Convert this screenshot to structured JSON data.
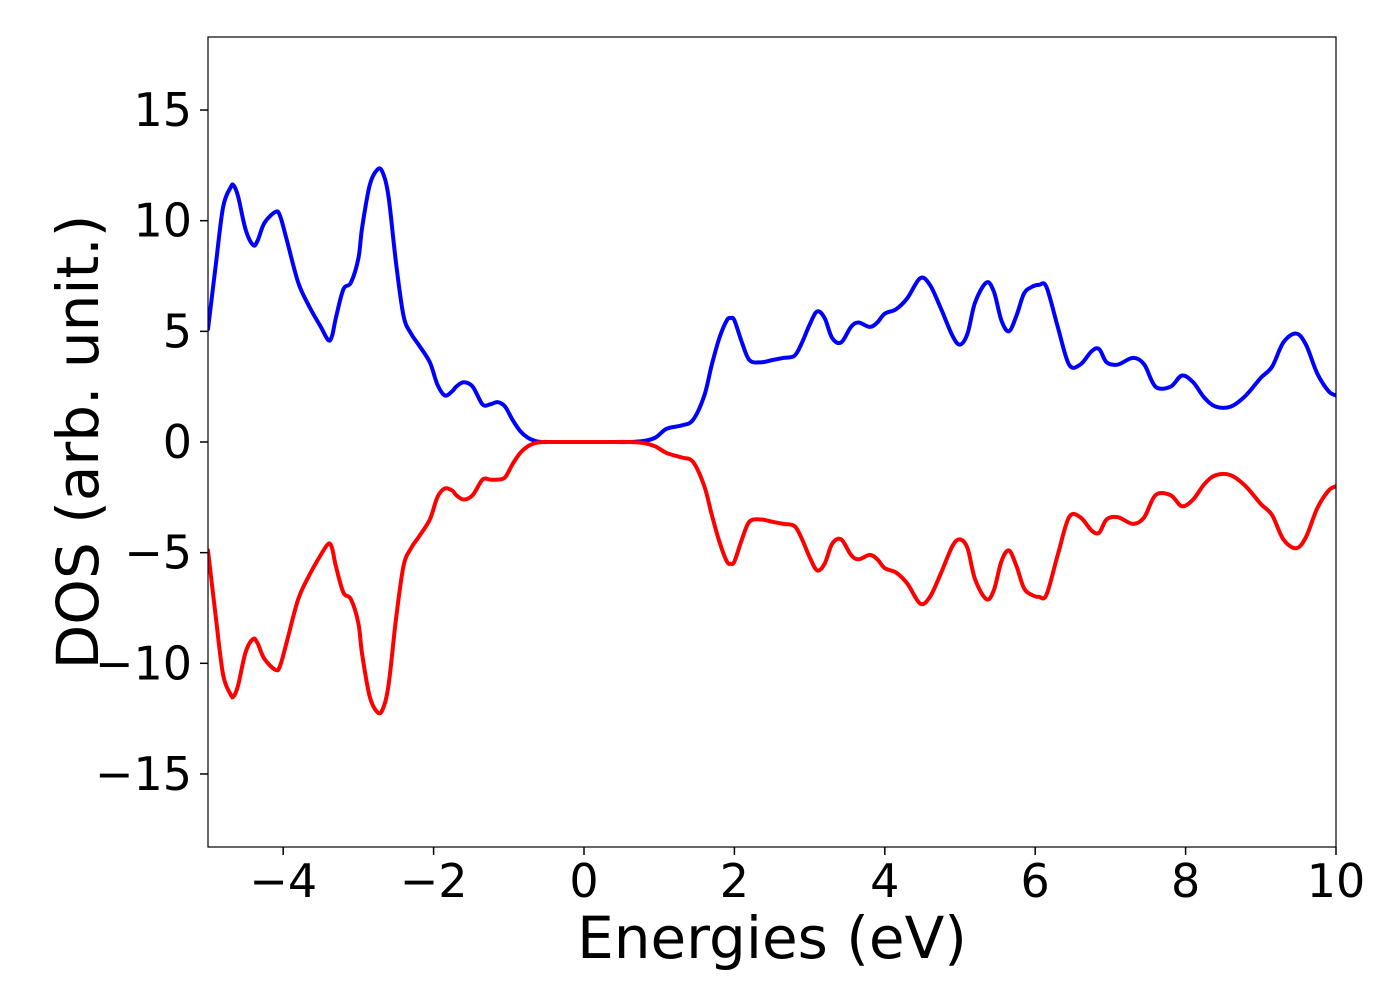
{
  "chart_data": {
    "type": "line",
    "xlabel": "Energies (eV)",
    "ylabel": "DOS (arb. unit.)",
    "xlim": [
      -5,
      10
    ],
    "ylim": [
      -18.3,
      18.3
    ],
    "xticks": [
      -4,
      -2,
      0,
      2,
      4,
      6,
      8,
      10
    ],
    "xtick_labels": [
      "−4",
      "−2",
      "0",
      "2",
      "4",
      "6",
      "8",
      "10"
    ],
    "yticks": [
      15,
      10,
      5,
      0,
      -5,
      -10,
      -15
    ],
    "ytick_labels": [
      "15",
      "10",
      "5",
      "0",
      "−5",
      "−10",
      "−15"
    ],
    "grid": false,
    "legend": "none",
    "series": [
      {
        "color": "#0000ff",
        "x": [
          -5.0,
          -4.9,
          -4.8,
          -4.7,
          -4.66,
          -4.6,
          -4.5,
          -4.4,
          -4.34,
          -4.25,
          -4.1,
          -4.04,
          -3.95,
          -3.8,
          -3.65,
          -3.5,
          -3.4,
          -3.35,
          -3.3,
          -3.2,
          -3.1,
          -3.0,
          -2.95,
          -2.85,
          -2.75,
          -2.68,
          -2.6,
          -2.5,
          -2.4,
          -2.3,
          -2.2,
          -2.05,
          -1.95,
          -1.85,
          -1.75,
          -1.7,
          -1.6,
          -1.48,
          -1.35,
          -1.25,
          -1.15,
          -1.05,
          -0.95,
          -0.85,
          -0.75,
          -0.65,
          -0.55,
          -0.45,
          -0.3,
          0.0,
          0.3,
          0.6,
          0.8,
          0.95,
          1.1,
          1.3,
          1.45,
          1.6,
          1.7,
          1.8,
          1.9,
          1.95,
          2.0,
          2.1,
          2.2,
          2.35,
          2.5,
          2.65,
          2.8,
          2.9,
          3.0,
          3.1,
          3.2,
          3.3,
          3.42,
          3.55,
          3.65,
          3.8,
          3.9,
          4.0,
          4.15,
          4.3,
          4.47,
          4.6,
          4.75,
          4.9,
          5.0,
          5.1,
          5.2,
          5.35,
          5.45,
          5.55,
          5.65,
          5.75,
          5.85,
          5.95,
          6.05,
          6.15,
          6.3,
          6.45,
          6.6,
          6.75,
          6.85,
          6.95,
          7.1,
          7.3,
          7.45,
          7.6,
          7.8,
          7.95,
          8.1,
          8.25,
          8.4,
          8.6,
          8.8,
          9.0,
          9.15,
          9.3,
          9.47,
          9.6,
          9.75,
          9.9,
          10.0
        ],
        "y": [
          5.1,
          7.9,
          10.6,
          11.5,
          11.6,
          11.1,
          9.6,
          8.9,
          9.1,
          9.9,
          10.4,
          10.2,
          9.1,
          7.2,
          6.1,
          5.2,
          4.6,
          4.8,
          5.6,
          6.9,
          7.2,
          8.3,
          9.7,
          11.6,
          12.3,
          12.2,
          11.1,
          8.1,
          5.7,
          4.9,
          4.4,
          3.6,
          2.6,
          2.1,
          2.3,
          2.5,
          2.7,
          2.5,
          1.7,
          1.7,
          1.8,
          1.6,
          1.0,
          0.5,
          0.2,
          0.05,
          0.0,
          0.0,
          0.0,
          0.0,
          0.0,
          0.0,
          0.05,
          0.2,
          0.6,
          0.75,
          1.0,
          2.1,
          3.5,
          4.7,
          5.5,
          5.6,
          5.5,
          4.5,
          3.7,
          3.6,
          3.7,
          3.8,
          3.9,
          4.5,
          5.3,
          5.9,
          5.6,
          4.7,
          4.5,
          5.2,
          5.4,
          5.2,
          5.4,
          5.8,
          6.0,
          6.5,
          7.4,
          7.1,
          6.0,
          4.8,
          4.4,
          4.9,
          6.3,
          7.2,
          6.8,
          5.5,
          5.0,
          5.7,
          6.7,
          7.0,
          7.1,
          7.0,
          5.2,
          3.5,
          3.5,
          4.1,
          4.2,
          3.6,
          3.5,
          3.8,
          3.5,
          2.5,
          2.5,
          3.0,
          2.7,
          2.0,
          1.6,
          1.6,
          2.1,
          2.9,
          3.4,
          4.5,
          4.9,
          4.4,
          3.1,
          2.3,
          2.1
        ]
      },
      {
        "color": "#ff0000",
        "x": [
          -5.0,
          -4.9,
          -4.8,
          -4.7,
          -4.66,
          -4.6,
          -4.5,
          -4.4,
          -4.34,
          -4.25,
          -4.1,
          -4.04,
          -3.95,
          -3.8,
          -3.65,
          -3.5,
          -3.4,
          -3.35,
          -3.3,
          -3.2,
          -3.1,
          -3.0,
          -2.95,
          -2.85,
          -2.75,
          -2.68,
          -2.6,
          -2.5,
          -2.4,
          -2.3,
          -2.2,
          -2.05,
          -1.95,
          -1.85,
          -1.75,
          -1.7,
          -1.6,
          -1.48,
          -1.35,
          -1.25,
          -1.15,
          -1.05,
          -0.95,
          -0.85,
          -0.75,
          -0.65,
          -0.55,
          -0.45,
          -0.3,
          0.0,
          0.3,
          0.6,
          0.8,
          0.95,
          1.1,
          1.3,
          1.45,
          1.6,
          1.7,
          1.8,
          1.9,
          1.95,
          2.0,
          2.1,
          2.2,
          2.35,
          2.5,
          2.65,
          2.8,
          2.9,
          3.0,
          3.1,
          3.2,
          3.3,
          3.42,
          3.55,
          3.65,
          3.8,
          3.9,
          4.0,
          4.15,
          4.3,
          4.47,
          4.6,
          4.75,
          4.9,
          5.0,
          5.1,
          5.2,
          5.35,
          5.45,
          5.55,
          5.65,
          5.75,
          5.85,
          5.95,
          6.05,
          6.15,
          6.3,
          6.45,
          6.6,
          6.75,
          6.85,
          6.95,
          7.1,
          7.3,
          7.45,
          7.6,
          7.8,
          7.95,
          8.1,
          8.25,
          8.4,
          8.6,
          8.8,
          9.0,
          9.15,
          9.3,
          9.47,
          9.6,
          9.75,
          9.9,
          10.0
        ],
        "y": [
          -4.9,
          -7.8,
          -10.5,
          -11.4,
          -11.5,
          -11.0,
          -9.5,
          -8.9,
          -9.1,
          -9.8,
          -10.3,
          -10.1,
          -9.0,
          -7.1,
          -6.0,
          -5.1,
          -4.6,
          -4.8,
          -5.6,
          -6.8,
          -7.1,
          -8.2,
          -9.6,
          -11.5,
          -12.2,
          -12.1,
          -11.0,
          -8.0,
          -5.6,
          -4.8,
          -4.3,
          -3.5,
          -2.5,
          -2.1,
          -2.2,
          -2.4,
          -2.6,
          -2.4,
          -1.7,
          -1.7,
          -1.7,
          -1.6,
          -1.0,
          -0.5,
          -0.2,
          -0.05,
          0.0,
          0.0,
          0.0,
          0.0,
          0.0,
          0.0,
          -0.05,
          -0.2,
          -0.5,
          -0.7,
          -0.9,
          -2.0,
          -3.3,
          -4.5,
          -5.4,
          -5.5,
          -5.4,
          -4.4,
          -3.6,
          -3.5,
          -3.6,
          -3.7,
          -3.8,
          -4.4,
          -5.2,
          -5.8,
          -5.5,
          -4.6,
          -4.4,
          -5.1,
          -5.3,
          -5.1,
          -5.3,
          -5.7,
          -5.9,
          -6.4,
          -7.3,
          -7.0,
          -5.9,
          -4.7,
          -4.4,
          -4.8,
          -6.2,
          -7.1,
          -6.7,
          -5.4,
          -4.9,
          -5.6,
          -6.6,
          -6.9,
          -7.0,
          -6.9,
          -5.1,
          -3.4,
          -3.4,
          -4.0,
          -4.1,
          -3.5,
          -3.4,
          -3.7,
          -3.4,
          -2.4,
          -2.4,
          -2.9,
          -2.6,
          -1.9,
          -1.5,
          -1.5,
          -2.0,
          -2.8,
          -3.3,
          -4.4,
          -4.8,
          -4.3,
          -3.0,
          -2.2,
          -2.0
        ]
      }
    ]
  }
}
